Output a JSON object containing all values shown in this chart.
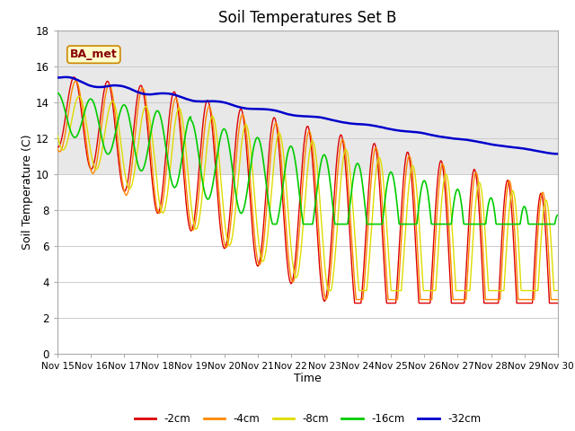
{
  "title": "Soil Temperatures Set B",
  "xlabel": "Time",
  "ylabel": "Soil Temperature (C)",
  "legend_label": "BA_met",
  "ylim": [
    0,
    18
  ],
  "yticks": [
    0,
    2,
    4,
    6,
    8,
    10,
    12,
    14,
    16,
    18
  ],
  "series_colors": {
    "-2cm": "#dd0000",
    "-4cm": "#ff8800",
    "-8cm": "#dddd00",
    "-16cm": "#00cc00",
    "-32cm": "#0000cc"
  },
  "background_color": "#ffffff",
  "plot_bg_color": "#e8e8e8",
  "annotation_bg": "#ffffcc",
  "annotation_border": "#cc8800",
  "annotation_text_color": "#880000",
  "xticklabels": [
    "Nov 15",
    "Nov 16",
    "Nov 17",
    "Nov 18",
    "Nov 19",
    "Nov 20",
    "Nov 21",
    "Nov 22",
    "Nov 23",
    "Nov 24",
    "Nov 25",
    "Nov 26",
    "Nov 27",
    "Nov 28",
    "Nov 29",
    "Nov 30"
  ],
  "n_points": 1440
}
